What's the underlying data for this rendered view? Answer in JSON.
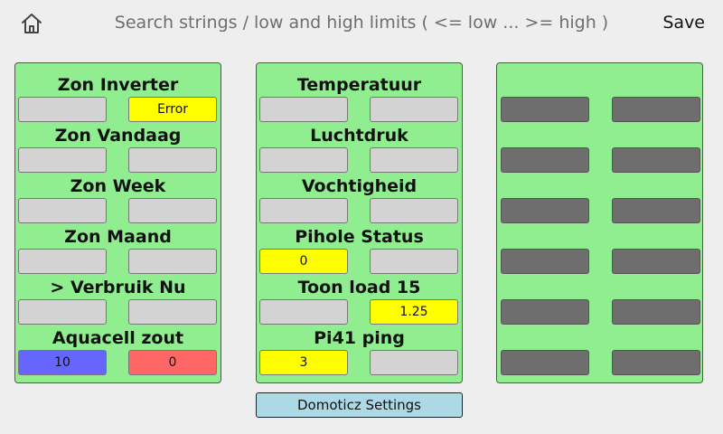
{
  "header": {
    "icon": "home-icon",
    "title": "Search strings / low and high limits ( <= low  ...  >= high )",
    "save_label": "Save"
  },
  "colors": {
    "panel": "#90ee90",
    "field": "#d3d3d3",
    "field_disabled": "#6e6e6e",
    "yellow": "#ffff00",
    "blue": "#6666ff",
    "red": "#ff6666",
    "button": "#add8e6"
  },
  "panel1": [
    {
      "label": "Zon Inverter",
      "low": "",
      "high": "Error",
      "low_color": "#d3d3d3",
      "high_color": "#ffff00"
    },
    {
      "label": "Zon Vandaag",
      "low": "",
      "high": "",
      "low_color": "#d3d3d3",
      "high_color": "#d3d3d3"
    },
    {
      "label": "Zon Week",
      "low": "",
      "high": "",
      "low_color": "#d3d3d3",
      "high_color": "#d3d3d3"
    },
    {
      "label": "Zon Maand",
      "low": "",
      "high": "",
      "low_color": "#d3d3d3",
      "high_color": "#d3d3d3"
    },
    {
      "label": "> Verbruik Nu",
      "low": "",
      "high": "",
      "low_color": "#d3d3d3",
      "high_color": "#d3d3d3"
    },
    {
      "label": "Aquacell zout",
      "low": "10",
      "high": "0",
      "low_color": "#6666ff",
      "high_color": "#ff6666"
    }
  ],
  "panel2": [
    {
      "label": "Temperatuur",
      "low": "",
      "high": "",
      "low_color": "#d3d3d3",
      "high_color": "#d3d3d3"
    },
    {
      "label": "Luchtdruk",
      "low": "",
      "high": "",
      "low_color": "#d3d3d3",
      "high_color": "#d3d3d3"
    },
    {
      "label": "Vochtigheid",
      "low": "",
      "high": "",
      "low_color": "#d3d3d3",
      "high_color": "#d3d3d3"
    },
    {
      "label": "Pihole Status",
      "low": "0",
      "high": "",
      "low_color": "#ffff00",
      "high_color": "#d3d3d3"
    },
    {
      "label": "Toon load 15",
      "low": "",
      "high": "1.25",
      "low_color": "#d3d3d3",
      "high_color": "#ffff00"
    },
    {
      "label": "Pi41 ping",
      "low": "3",
      "high": "",
      "low_color": "#ffff00",
      "high_color": "#d3d3d3"
    }
  ],
  "panel3": [
    {
      "label": "",
      "low": "",
      "high": ""
    },
    {
      "label": "",
      "low": "",
      "high": ""
    },
    {
      "label": "",
      "low": "",
      "high": ""
    },
    {
      "label": "",
      "low": "",
      "high": ""
    },
    {
      "label": "",
      "low": "",
      "high": ""
    },
    {
      "label": "",
      "low": "",
      "high": ""
    }
  ],
  "footer": {
    "domoticz_label": "Domoticz Settings"
  }
}
